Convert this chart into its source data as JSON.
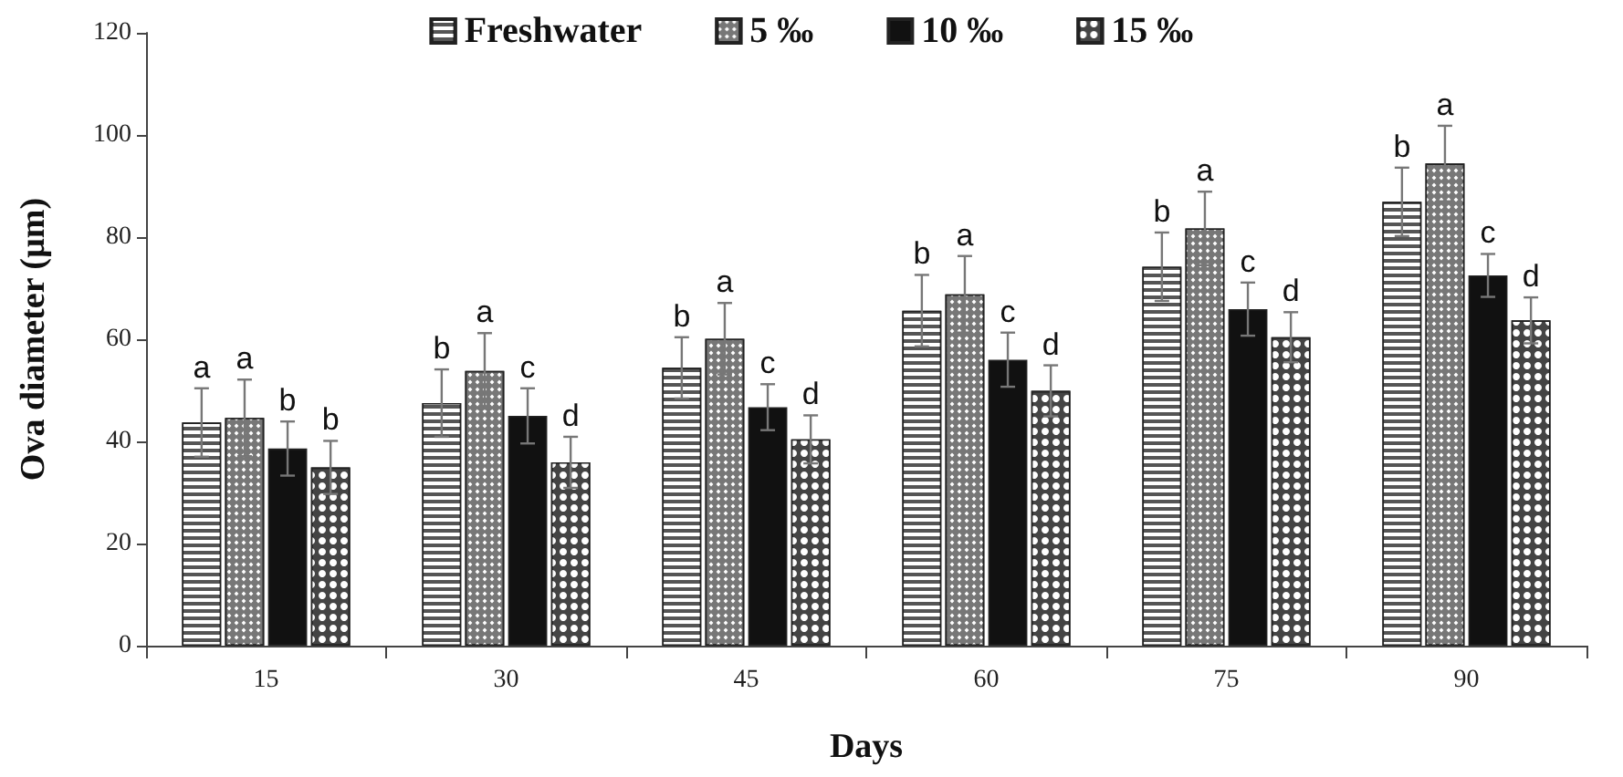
{
  "chart_data": {
    "type": "bar",
    "xlabel": "Days",
    "ylabel": "Ova diameter (µm)",
    "categories": [
      "15",
      "30",
      "45",
      "60",
      "75",
      "90"
    ],
    "series": [
      {
        "name": "Freshwater",
        "color": "#555555",
        "values": [
          43.7,
          47.5,
          54.4,
          65.6,
          74.2,
          86.9
        ],
        "errors": [
          6.7,
          6.6,
          6.0,
          7.0,
          6.7,
          6.7
        ],
        "value_labels": [
          "a",
          "b",
          "b",
          "b",
          "b",
          "b"
        ]
      },
      {
        "name": "5 ‰",
        "color": "#777777",
        "values": [
          44.6,
          53.8,
          60.1,
          68.8,
          81.7,
          94.4
        ],
        "errors": [
          7.5,
          7.4,
          7.0,
          7.5,
          7.2,
          7.4
        ],
        "value_labels": [
          "a",
          "a",
          "a",
          "a",
          "a",
          "a"
        ]
      },
      {
        "name": "10 ‰",
        "color": "#111111",
        "values": [
          38.6,
          45.0,
          46.7,
          56.0,
          65.9,
          72.5
        ],
        "errors": [
          5.3,
          5.4,
          4.5,
          5.3,
          5.2,
          4.2
        ],
        "value_labels": [
          "b",
          "c",
          "c",
          "c",
          "c",
          "c"
        ]
      },
      {
        "name": "15 ‰",
        "color": "#444444",
        "values": [
          34.9,
          35.9,
          40.4,
          49.9,
          60.4,
          63.7
        ],
        "errors": [
          5.2,
          5.0,
          4.7,
          5.0,
          4.9,
          4.5
        ],
        "value_labels": [
          "b",
          "d",
          "d",
          "d",
          "d",
          "d"
        ]
      }
    ],
    "ylim": [
      0,
      120
    ],
    "yticks": [
      0,
      20,
      40,
      60,
      80,
      100,
      120
    ],
    "grid": false,
    "legend": "top"
  }
}
